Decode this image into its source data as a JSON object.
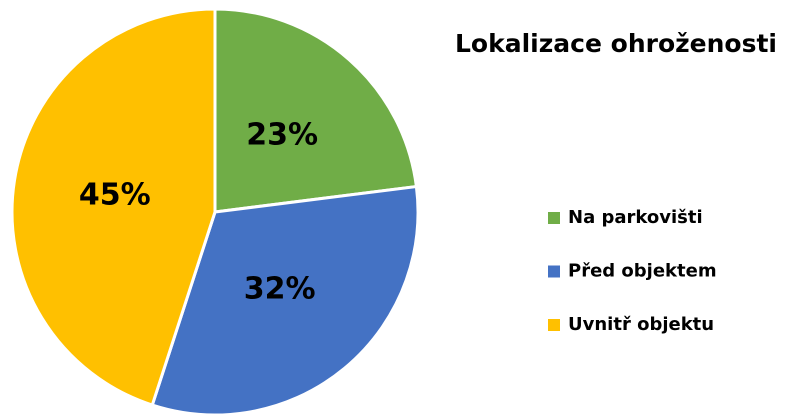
{
  "chart_data": {
    "type": "pie",
    "title": "Lokalizace ohroženosti",
    "categories": [
      "Na parkovišti",
      "Před objektem",
      "Uvnitř objektu"
    ],
    "values": [
      23,
      32,
      45
    ],
    "value_labels": [
      "23%",
      "32%",
      "45%"
    ],
    "colors": [
      "#70ad47",
      "#4472c4",
      "#ffc000"
    ],
    "legend": "right"
  }
}
